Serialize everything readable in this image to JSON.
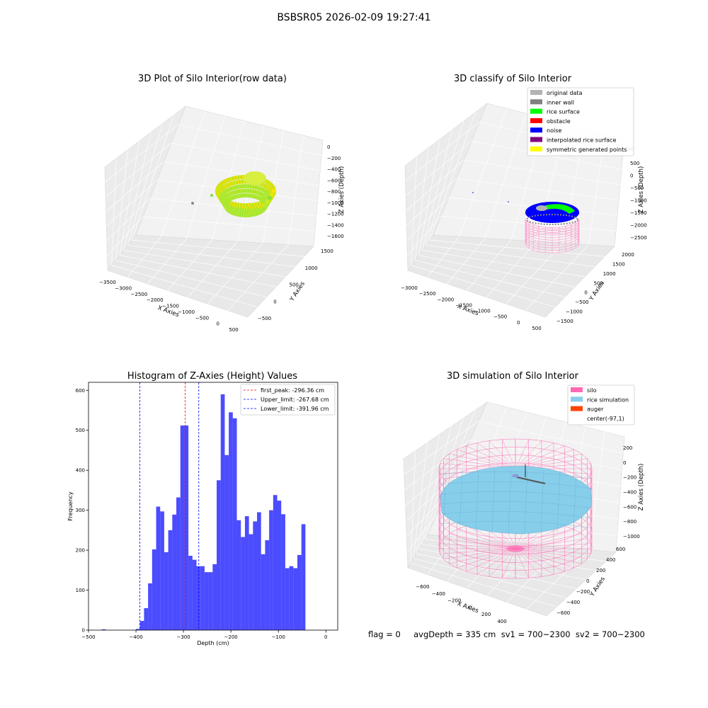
{
  "figure": {
    "suptitle": "BSBSR05 2026-02-09 19:27:41",
    "footer": "flag = 0     avgDepth = 335 cm  sv1 = 700~2300  sv2 = 700~2300"
  },
  "chart_data": [
    {
      "type": "scatter",
      "title": "3D Plot of Silo Interior(row data)",
      "xlabel": "X Axies",
      "ylabel": "Y Axies",
      "zlabel": "Z Axies (Depth)",
      "x_ticks": [
        "−3500",
        "−3000",
        "−2500",
        "−2000",
        "−1500",
        "−1000",
        "−500",
        "0",
        "500"
      ],
      "y_ticks": [
        "−500",
        "0",
        "500",
        "1000",
        "1500"
      ],
      "z_ticks": [
        "0",
        "−200",
        "−400",
        "−600",
        "−800",
        "−1000",
        "−1200",
        "−1400",
        "−1600"
      ],
      "colors": [
        "#ffe600",
        "#c7ee2a",
        "#7edc3c"
      ]
    },
    {
      "type": "scatter",
      "title": "3D classify of Silo Interior",
      "xlabel": "X Axies",
      "ylabel": "Y Axies",
      "zlabel": "Z Axies (Depth)",
      "x_ticks": [
        "−3000",
        "−2500",
        "−2000",
        "−1500",
        "−1000",
        "−500",
        "0",
        "500"
      ],
      "y_ticks": [
        "−1500",
        "−1000",
        "−500",
        "0",
        "500",
        "1000",
        "1500",
        "2000"
      ],
      "z_ticks": [
        "500",
        "0",
        "−500",
        "−1000",
        "−1500",
        "−2000",
        "−2500"
      ],
      "z_tick_partial": "00",
      "legend": [
        {
          "label": "original data",
          "color": "#b3b3b3"
        },
        {
          "label": "inner wall",
          "color": "#808080"
        },
        {
          "label": "rice surface",
          "color": "#00ff00"
        },
        {
          "label": "obstacle",
          "color": "#ff0000"
        },
        {
          "label": "noise",
          "color": "#0000ff"
        },
        {
          "label": "interpolated rice surface",
          "color": "#800080"
        },
        {
          "label": "symmetric generated points",
          "color": "#ffff00"
        }
      ]
    },
    {
      "type": "bar",
      "title": "Histogram of Z-Axies (Height) Values",
      "xlabel": "Depth (cm)",
      "ylabel": "Frequency",
      "xlim": [
        -500,
        25
      ],
      "ylim": [
        0,
        620
      ],
      "x_ticks": [
        -500,
        -400,
        -300,
        -200,
        -100,
        0
      ],
      "x_tick_labels": [
        "−500",
        "−400",
        "−300",
        "−200",
        "−100",
        "0"
      ],
      "y_ticks": [
        0,
        100,
        200,
        300,
        400,
        500,
        600
      ],
      "bin_start": -400,
      "bin_width": 8.5,
      "values": [
        3,
        23,
        55,
        117,
        202,
        309,
        297,
        195,
        250,
        289,
        332,
        512,
        512,
        186,
        176,
        160,
        160,
        145,
        145,
        165,
        375,
        590,
        438,
        545,
        530,
        275,
        233,
        285,
        240,
        272,
        295,
        190,
        225,
        300,
        338,
        324,
        290,
        155,
        160,
        155,
        188,
        265
      ],
      "stray_bins": [
        {
          "x": -472,
          "width": 8.5,
          "value": 2
        }
      ],
      "bar_color": "#0000ff",
      "vlines": [
        {
          "x": -296.36,
          "color": "#ff0000",
          "label": "first_peak: -296.36 cm"
        },
        {
          "x": -267.68,
          "color": "#0000ff",
          "label": "Upper_limit: -267.68 cm"
        },
        {
          "x": -391.96,
          "color": "#0000ff",
          "label": "Lower_limit: -391.96 cm"
        }
      ],
      "legend_position": "upper right"
    },
    {
      "type": "scatter",
      "title": "3D simulation of Silo Interior",
      "xlabel": "X Axies",
      "ylabel": "Y Axies",
      "zlabel": "Z Axies (Depth)",
      "x_ticks": [
        "−600",
        "−400",
        "−200",
        "0",
        "200",
        "400"
      ],
      "y_ticks": [
        "−600",
        "−400",
        "−200",
        "0",
        "200",
        "400",
        "600"
      ],
      "z_ticks": [
        "200",
        "0",
        "−200",
        "−400",
        "−600",
        "−800",
        "−1000"
      ],
      "legend": [
        {
          "label": "silo",
          "color": "#ff69b4"
        },
        {
          "label": "rice simulation",
          "color": "#87ceeb"
        },
        {
          "label": "auger",
          "color": "#ff4500"
        },
        {
          "label": "center(-97,1)",
          "color": "#ffffff"
        }
      ]
    }
  ]
}
